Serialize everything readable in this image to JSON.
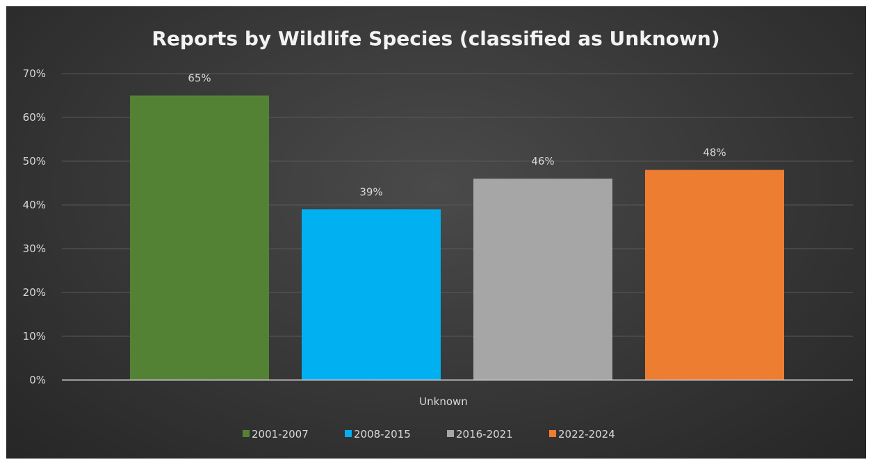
{
  "chart_data": {
    "type": "bar",
    "title": "Reports by Wildlife Species (classified as Unknown)",
    "categories": [
      "Unknown"
    ],
    "series": [
      {
        "name": "2001-2007",
        "values": [
          65
        ],
        "label": "65%",
        "color": "#548235"
      },
      {
        "name": "2008-2015",
        "values": [
          39
        ],
        "label": "39%",
        "color": "#00b0f0"
      },
      {
        "name": "2016-2021",
        "values": [
          46
        ],
        "label": "46%",
        "color": "#a6a6a6"
      },
      {
        "name": "2022-2024",
        "values": [
          48
        ],
        "label": "48%",
        "color": "#ed7d31"
      }
    ],
    "ylim": [
      0,
      70
    ],
    "yticks": [
      "0%",
      "10%",
      "20%",
      "30%",
      "40%",
      "50%",
      "60%",
      "70%"
    ],
    "grid": true,
    "legend_position": "bottom"
  }
}
